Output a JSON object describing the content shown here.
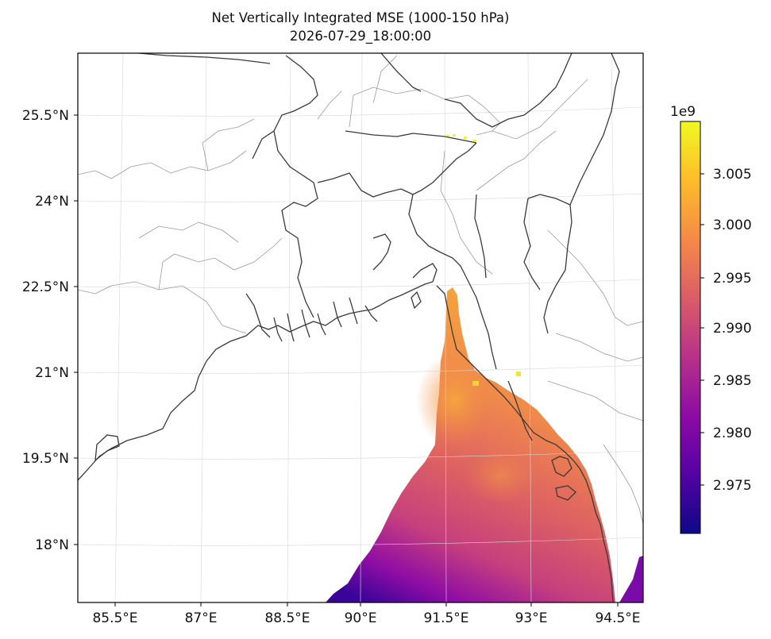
{
  "title": "Net Vertically Integrated MSE (1000-150 hPa)",
  "timestamp": "2026-07-29_18:00:00",
  "map": {
    "lon_ticks": [
      "85.5°E",
      "87°E",
      "88.5°E",
      "90°E",
      "91.5°E",
      "93°E",
      "94.5°E"
    ],
    "lat_ticks": [
      "25.5°N",
      "24°N",
      "22.5°N",
      "21°N",
      "19.5°N",
      "18°N"
    ],
    "extent": {
      "lon": [
        84.85,
        94.85
      ],
      "lat": [
        16.9,
        26.55
      ]
    },
    "gridlines": true
  },
  "colorbar": {
    "multiplier": "1e9",
    "ticks": [
      "3.005",
      "3.000",
      "2.995",
      "2.990",
      "2.985",
      "2.980",
      "2.975"
    ],
    "range": [
      2.9705,
      3.0095
    ],
    "colormap": "plasma",
    "colors": [
      "#0d0887",
      "#5302a3",
      "#8b0aa5",
      "#b83289",
      "#db5c68",
      "#f48849",
      "#febd2a",
      "#f0f921"
    ]
  },
  "field_summary": {
    "coverage": "Bay of Bengal ocean cells only",
    "north_band_value_e9": 3.0,
    "central_bay_value_e9": 2.993,
    "southwest_corner_value_e9": 2.972
  }
}
